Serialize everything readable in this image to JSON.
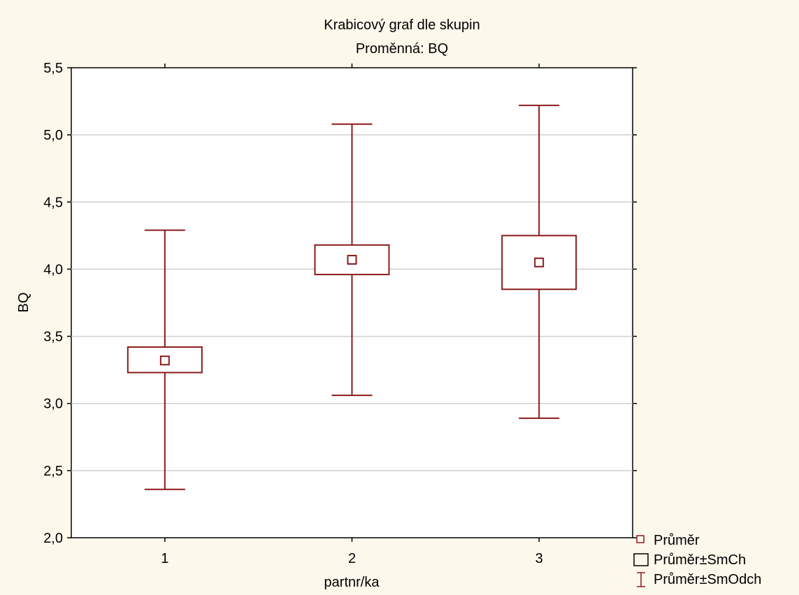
{
  "chart_data": {
    "type": "box",
    "title": "Krabicový graf dle skupin",
    "subtitle": "Proměnná: BQ",
    "xlabel": "partnr/ka",
    "ylabel": "BQ",
    "ylim": [
      2.0,
      5.5
    ],
    "yticks": [
      "2,0",
      "2,5",
      "3,0",
      "3,5",
      "4,0",
      "4,5",
      "5,0",
      "5,5"
    ],
    "ytick_values": [
      2.0,
      2.5,
      3.0,
      3.5,
      4.0,
      4.5,
      5.0,
      5.5
    ],
    "grid": true,
    "legend_position": "bottom-right",
    "color": "#8b1a1a",
    "categories": [
      "1",
      "2",
      "3"
    ],
    "boxes": [
      {
        "category": "1",
        "mean": 3.32,
        "se_low": 3.23,
        "se_high": 3.42,
        "sd_low": 2.36,
        "sd_high": 4.29
      },
      {
        "category": "2",
        "mean": 4.07,
        "se_low": 3.96,
        "se_high": 4.18,
        "sd_low": 3.06,
        "sd_high": 5.08
      },
      {
        "category": "3",
        "mean": 4.05,
        "se_low": 3.85,
        "se_high": 4.25,
        "sd_low": 2.89,
        "sd_high": 5.22
      }
    ],
    "legend": [
      {
        "symbol": "mean-marker",
        "label": "Průměr"
      },
      {
        "symbol": "se-box",
        "label": "Průměr±SmCh"
      },
      {
        "symbol": "sd-whisker",
        "label": "Průměr±SmOdch"
      }
    ]
  }
}
